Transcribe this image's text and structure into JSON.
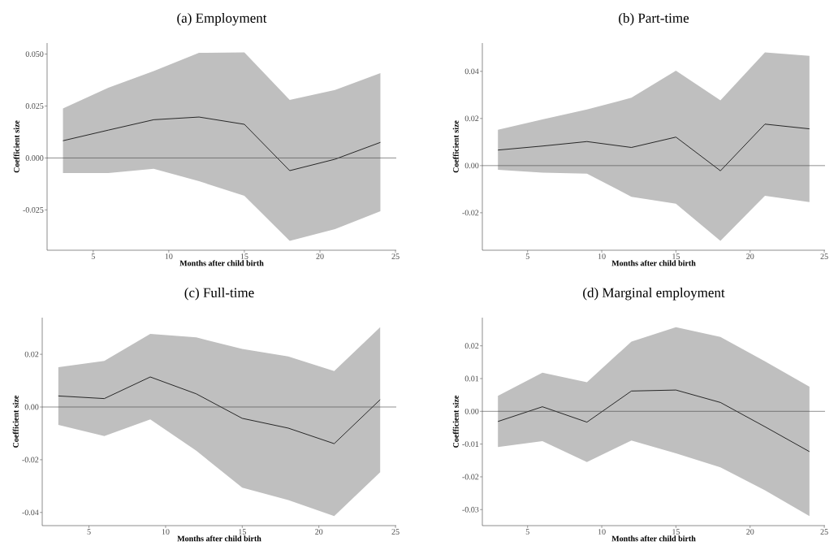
{
  "chart_data": [
    {
      "type": "line",
      "title": "(a) Employment",
      "xlabel": "Months after child birth",
      "ylabel": "Coefficient size",
      "x": [
        3,
        6,
        9,
        12,
        15,
        18,
        21,
        24
      ],
      "xlim": [
        1.95,
        25.05
      ],
      "ylim": [
        -0.0444,
        0.0553
      ],
      "xticks": [
        5,
        10,
        15,
        20,
        25
      ],
      "yticks": [
        {
          "value": -0.025,
          "label": "-0.025"
        },
        {
          "value": 0,
          "label": "0.000"
        },
        {
          "value": 0.025,
          "label": "0.025"
        },
        {
          "value": 0.05,
          "label": "0.050"
        }
      ],
      "ref_lines": [
        {
          "axis": "y",
          "value": 0,
          "color": "#444444"
        }
      ],
      "series": [
        {
          "color": "#000000",
          "values": [
            0.0083,
            0.0134,
            0.0184,
            0.0197,
            0.0162,
            -0.0061,
            -0.0006,
            0.0075
          ],
          "lower": [
            -0.0073,
            -0.0073,
            -0.0052,
            -0.0112,
            -0.0182,
            -0.0399,
            -0.0342,
            -0.0256
          ],
          "upper": [
            0.0238,
            0.0338,
            0.0418,
            0.0506,
            0.0508,
            0.0279,
            0.0327,
            0.0408
          ]
        }
      ]
    },
    {
      "type": "line",
      "title": "(b) Part-time",
      "xlabel": "Months after child birth",
      "ylabel": "Coefficient size",
      "x": [
        3,
        6,
        9,
        12,
        15,
        18,
        21,
        24
      ],
      "xlim": [
        1.95,
        25.05
      ],
      "ylim": [
        -0.0359,
        0.052
      ],
      "xticks": [
        5,
        10,
        15,
        20,
        25
      ],
      "yticks": [
        {
          "value": -0.02,
          "label": "-0.02"
        },
        {
          "value": 0,
          "label": "0.00"
        },
        {
          "value": 0.02,
          "label": "0.02"
        },
        {
          "value": 0.04,
          "label": "0.04"
        }
      ],
      "ref_lines": [
        {
          "axis": "y",
          "value": 0,
          "color": "#444444"
        }
      ],
      "series": [
        {
          "color": "#000000",
          "values": [
            0.0066,
            0.0083,
            0.0102,
            0.0077,
            0.0121,
            -0.0022,
            0.0176,
            0.0156
          ],
          "lower": [
            -0.0018,
            -0.003,
            -0.0034,
            -0.0132,
            -0.0162,
            -0.0319,
            -0.0128,
            -0.0155
          ],
          "upper": [
            0.0152,
            0.0196,
            0.0238,
            0.0288,
            0.0403,
            0.0277,
            0.048,
            0.0466
          ]
        }
      ]
    },
    {
      "type": "line",
      "title": "(c) Full-time",
      "xlabel": "Months after child birth",
      "ylabel": "Coefficient size",
      "x": [
        3,
        6,
        9,
        12,
        15,
        18,
        21,
        24
      ],
      "xlim": [
        1.95,
        25.05
      ],
      "ylim": [
        -0.045,
        0.0339
      ],
      "xticks": [
        5,
        10,
        15,
        20,
        25
      ],
      "yticks": [
        {
          "value": -0.04,
          "label": "-0.04"
        },
        {
          "value": -0.02,
          "label": "-0.02"
        },
        {
          "value": 0,
          "label": "0.00"
        },
        {
          "value": 0.02,
          "label": "0.02"
        }
      ],
      "ref_lines": [
        {
          "axis": "y",
          "value": 0,
          "color": "#444444"
        }
      ],
      "series": [
        {
          "color": "#000000",
          "values": [
            0.0042,
            0.0032,
            0.0114,
            0.005,
            -0.0043,
            -0.008,
            -0.0139,
            0.0028
          ],
          "lower": [
            -0.0068,
            -0.011,
            -0.0047,
            -0.0166,
            -0.0306,
            -0.0353,
            -0.0414,
            -0.0247
          ],
          "upper": [
            0.0151,
            0.0175,
            0.0277,
            0.0264,
            0.022,
            0.0192,
            0.0136,
            0.0303
          ]
        }
      ]
    },
    {
      "type": "line",
      "title": "(d) Marginal employment",
      "xlabel": "Months after child birth",
      "ylabel": "Coefficient size",
      "x": [
        3,
        6,
        9,
        12,
        15,
        18,
        21,
        24
      ],
      "xlim": [
        1.95,
        25.05
      ],
      "ylim": [
        -0.0349,
        0.0286
      ],
      "xticks": [
        5,
        10,
        15,
        20,
        25
      ],
      "yticks": [
        {
          "value": -0.03,
          "label": "-0.03"
        },
        {
          "value": -0.02,
          "label": "-0.02"
        },
        {
          "value": -0.01,
          "label": "-0.01"
        },
        {
          "value": 0,
          "label": "0.00"
        },
        {
          "value": 0.01,
          "label": "0.01"
        },
        {
          "value": 0.02,
          "label": "0.02"
        }
      ],
      "ref_lines": [
        {
          "axis": "y",
          "value": 0,
          "color": "#444444"
        }
      ],
      "series": [
        {
          "color": "#000000",
          "values": [
            -0.0031,
            0.0014,
            -0.0033,
            0.0062,
            0.0065,
            0.0027,
            -0.0047,
            -0.0123
          ],
          "lower": [
            -0.0109,
            -0.0091,
            -0.0155,
            -0.0089,
            -0.0128,
            -0.0171,
            -0.0241,
            -0.032
          ],
          "upper": [
            0.0047,
            0.0118,
            0.0089,
            0.0213,
            0.0257,
            0.0227,
            0.0153,
            0.0075
          ]
        }
      ]
    }
  ]
}
